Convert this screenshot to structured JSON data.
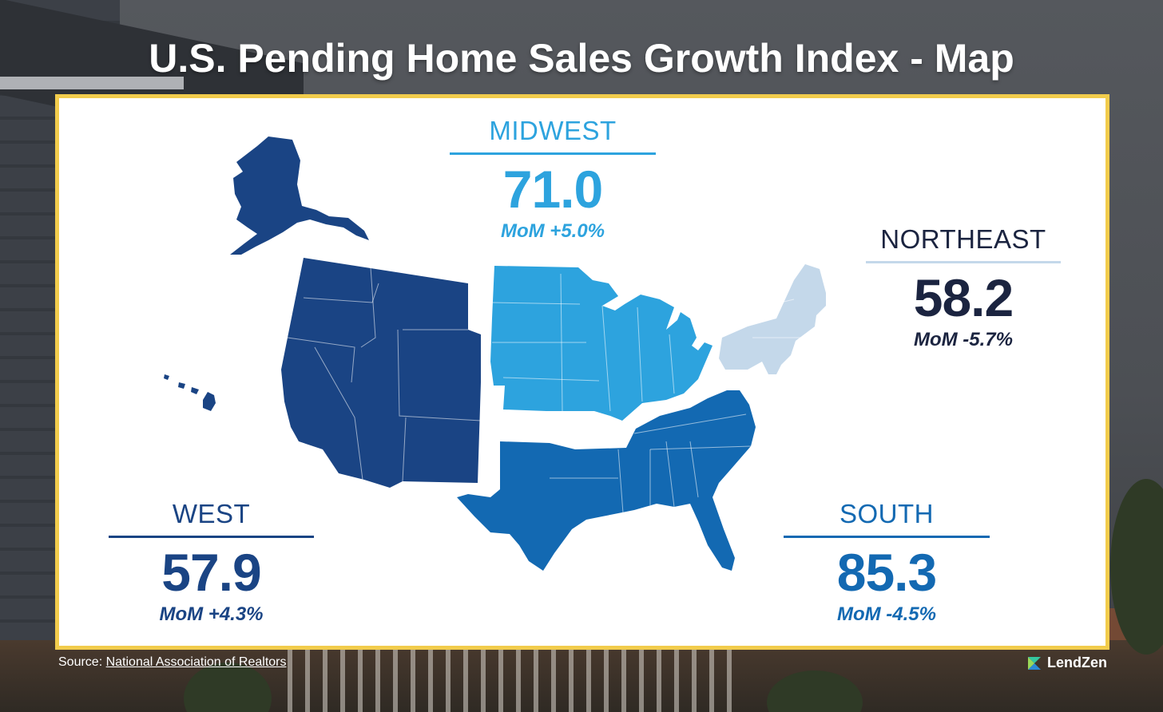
{
  "title": "U.S. Pending Home Sales Growth Index - Map",
  "colors": {
    "frame": "#f2cc4c",
    "west": "#1a4484",
    "midwest": "#2da3de",
    "south": "#1369b2",
    "northeast": "#c4d8ea"
  },
  "regions": {
    "midwest": {
      "name": "MIDWEST",
      "value": "71.0",
      "mom": "MoM +5.0%"
    },
    "northeast": {
      "name": "NORTHEAST",
      "value": "58.2",
      "mom": "MoM -5.7%"
    },
    "west": {
      "name": "WEST",
      "value": "57.9",
      "mom": "MoM +4.3%"
    },
    "south": {
      "name": "SOUTH",
      "value": "85.3",
      "mom": "MoM -4.5%"
    }
  },
  "footer": {
    "source_prefix": "Source: ",
    "source_link": "National Association of Realtors",
    "brand": "LendZen",
    "brand_icon": "lendzen-logo-icon"
  }
}
